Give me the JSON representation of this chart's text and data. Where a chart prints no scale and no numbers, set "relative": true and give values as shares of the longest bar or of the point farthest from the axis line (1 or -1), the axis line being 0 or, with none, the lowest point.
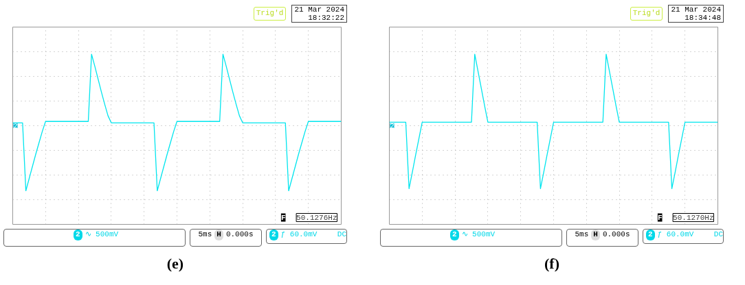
{
  "chart_data": [
    {
      "type": "line",
      "title": "(e)",
      "relative": true,
      "grid": true,
      "line_style": "solid",
      "marker": "none",
      "categories": [
        null,
        null,
        null,
        null,
        null,
        null,
        null,
        null,
        null,
        null,
        null,
        null,
        null,
        null,
        null,
        null,
        null,
        null,
        null,
        null,
        null,
        null,
        null,
        null,
        null,
        null,
        null,
        null,
        null,
        null,
        null,
        null,
        null,
        null,
        null,
        null,
        null,
        null,
        null,
        null,
        null,
        null,
        null,
        null,
        null,
        null,
        null,
        null,
        null,
        null,
        null,
        null,
        null,
        null,
        null,
        null,
        null,
        null,
        null,
        null,
        null,
        null,
        null,
        null,
        null,
        null,
        null,
        null,
        null,
        null,
        null,
        null,
        null,
        null,
        null,
        null,
        null,
        null,
        null,
        null,
        null,
        null,
        null,
        null,
        null,
        null,
        null,
        null,
        null,
        null,
        null,
        null,
        null,
        null,
        null,
        null,
        null,
        null,
        null,
        null,
        null
      ],
      "series": [
        {
          "color": "#00e5ee",
          "values": [
            0.04,
            0.04,
            0.04,
            0.04,
            -0.91,
            -0.74,
            -0.57,
            -0.4,
            -0.24,
            -0.08,
            0.06,
            0.06,
            0.06,
            0.06,
            0.06,
            0.06,
            0.06,
            0.06,
            0.06,
            0.06,
            0.06,
            0.06,
            0.06,
            0.06,
            1.0,
            0.83,
            0.65,
            0.47,
            0.3,
            0.14,
            0.04,
            0.04,
            0.04,
            0.04,
            0.04,
            0.04,
            0.04,
            0.04,
            0.04,
            0.04,
            0.04,
            0.04,
            0.04,
            0.04,
            -0.91,
            -0.74,
            -0.57,
            -0.4,
            -0.24,
            -0.08,
            0.06,
            0.06,
            0.06,
            0.06,
            0.06,
            0.06,
            0.06,
            0.06,
            0.06,
            0.06,
            0.06,
            0.06,
            0.06,
            0.06,
            1.0,
            0.83,
            0.65,
            0.47,
            0.3,
            0.14,
            0.04,
            0.04,
            0.04,
            0.04,
            0.04,
            0.04,
            0.04,
            0.04,
            0.04,
            0.04,
            0.04,
            0.04,
            0.04,
            0.04,
            -0.91,
            -0.74,
            -0.57,
            -0.4,
            -0.24,
            -0.08,
            0.06,
            0.06,
            0.06,
            0.06,
            0.06,
            0.06,
            0.06,
            0.06,
            0.06,
            0.06,
            0.06
          ]
        }
      ],
      "annotations": [
        "2",
        "Trig'd",
        "21 Mar 2024",
        "18:32:22",
        "F",
        "50.1276Hz",
        "2",
        "∿ 500mV",
        "5ms",
        "H",
        "0.000s",
        "2",
        "ƒ 60.0mV",
        "DC"
      ]
    },
    {
      "type": "line",
      "title": "(f)",
      "relative": true,
      "grid": true,
      "line_style": "solid",
      "marker": "none",
      "categories": [
        null,
        null,
        null,
        null,
        null,
        null,
        null,
        null,
        null,
        null,
        null,
        null,
        null,
        null,
        null,
        null,
        null,
        null,
        null,
        null,
        null,
        null,
        null,
        null,
        null,
        null,
        null,
        null,
        null,
        null,
        null,
        null,
        null,
        null,
        null,
        null,
        null,
        null,
        null,
        null,
        null,
        null,
        null,
        null,
        null,
        null,
        null,
        null,
        null,
        null,
        null,
        null,
        null,
        null,
        null,
        null,
        null,
        null,
        null,
        null,
        null,
        null,
        null,
        null,
        null,
        null,
        null,
        null,
        null,
        null,
        null,
        null,
        null,
        null,
        null,
        null,
        null,
        null,
        null,
        null,
        null,
        null,
        null,
        null,
        null,
        null,
        null,
        null,
        null,
        null,
        null,
        null,
        null,
        null,
        null,
        null,
        null,
        null,
        null,
        null,
        null
      ],
      "series": [
        {
          "color": "#00e5ee",
          "values": [
            0.05,
            0.05,
            0.05,
            0.05,
            0.05,
            0.05,
            -0.88,
            -0.65,
            -0.41,
            -0.18,
            0.05,
            0.05,
            0.05,
            0.05,
            0.05,
            0.05,
            0.05,
            0.05,
            0.05,
            0.05,
            0.05,
            0.05,
            0.05,
            0.05,
            0.05,
            0.05,
            1.0,
            0.76,
            0.52,
            0.28,
            0.05,
            0.05,
            0.05,
            0.05,
            0.05,
            0.05,
            0.05,
            0.05,
            0.05,
            0.05,
            0.05,
            0.05,
            0.05,
            0.05,
            0.05,
            0.05,
            -0.88,
            -0.65,
            -0.41,
            -0.18,
            0.05,
            0.05,
            0.05,
            0.05,
            0.05,
            0.05,
            0.05,
            0.05,
            0.05,
            0.05,
            0.05,
            0.05,
            0.05,
            0.05,
            0.05,
            0.05,
            1.0,
            0.76,
            0.52,
            0.28,
            0.05,
            0.05,
            0.05,
            0.05,
            0.05,
            0.05,
            0.05,
            0.05,
            0.05,
            0.05,
            0.05,
            0.05,
            0.05,
            0.05,
            0.05,
            0.05,
            -0.88,
            -0.65,
            -0.41,
            -0.18,
            0.05,
            0.05,
            0.05,
            0.05,
            0.05,
            0.05,
            0.05,
            0.05,
            0.05,
            0.05,
            0.05
          ]
        }
      ],
      "annotations": [
        "2",
        "Trig'd",
        "21 Mar 2024",
        "18:34:48",
        "F",
        "50.1270Hz",
        "2",
        "∿ 500mV",
        "5ms",
        "H",
        "0.000s",
        "2",
        "ƒ 60.0mV",
        "DC"
      ]
    }
  ]
}
